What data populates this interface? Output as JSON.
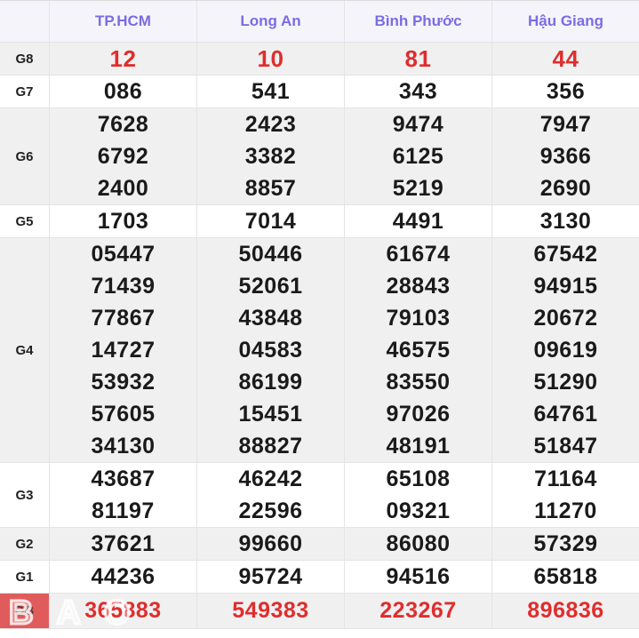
{
  "table": {
    "corner_label": "",
    "columns": [
      "TP.HCM",
      "Long An",
      "Bình Phước",
      "Hậu Giang"
    ],
    "rows": [
      {
        "key": "g8",
        "label": "G8",
        "cells": [
          [
            "12"
          ],
          [
            "10"
          ],
          [
            "81"
          ],
          [
            "44"
          ]
        ]
      },
      {
        "key": "g7",
        "label": "G7",
        "cells": [
          [
            "086"
          ],
          [
            "541"
          ],
          [
            "343"
          ],
          [
            "356"
          ]
        ]
      },
      {
        "key": "g6",
        "label": "G6",
        "cells": [
          [
            "7628",
            "6792",
            "2400"
          ],
          [
            "2423",
            "3382",
            "8857"
          ],
          [
            "9474",
            "6125",
            "5219"
          ],
          [
            "7947",
            "9366",
            "2690"
          ]
        ]
      },
      {
        "key": "g5",
        "label": "G5",
        "cells": [
          [
            "1703"
          ],
          [
            "7014"
          ],
          [
            "4491"
          ],
          [
            "3130"
          ]
        ]
      },
      {
        "key": "g4",
        "label": "G4",
        "cells": [
          [
            "05447",
            "71439",
            "77867",
            "14727",
            "53932",
            "57605",
            "34130"
          ],
          [
            "50446",
            "52061",
            "43848",
            "04583",
            "86199",
            "15451",
            "88827"
          ],
          [
            "61674",
            "28843",
            "79103",
            "46575",
            "83550",
            "97026",
            "48191"
          ],
          [
            "67542",
            "94915",
            "20672",
            "09619",
            "51290",
            "64761",
            "51847"
          ]
        ]
      },
      {
        "key": "g3",
        "label": "G3",
        "cells": [
          [
            "43687",
            "81197"
          ],
          [
            "46242",
            "22596"
          ],
          [
            "65108",
            "09321"
          ],
          [
            "71164",
            "11270"
          ]
        ]
      },
      {
        "key": "g2",
        "label": "G2",
        "cells": [
          [
            "37621"
          ],
          [
            "99660"
          ],
          [
            "86080"
          ],
          [
            "57329"
          ]
        ]
      },
      {
        "key": "g1",
        "label": "G1",
        "cells": [
          [
            "44236"
          ],
          [
            "95724"
          ],
          [
            "94516"
          ],
          [
            "65818"
          ]
        ]
      },
      {
        "key": "db",
        "label": "ĐB",
        "cells": [
          [
            "365883"
          ],
          [
            "549383"
          ],
          [
            "223267"
          ],
          [
            "896836"
          ]
        ]
      }
    ]
  },
  "watermark": {
    "text": "BAO"
  },
  "colors": {
    "header_text": "#7b6ce4",
    "header_bg": "#f5f4fb",
    "shaded_row_bg": "#f0f0f0",
    "highlight_red": "#e02d2d",
    "number_black": "#1a1a1a",
    "special_cell_bg": "#e05c5c",
    "border": "#e4e4e4"
  }
}
